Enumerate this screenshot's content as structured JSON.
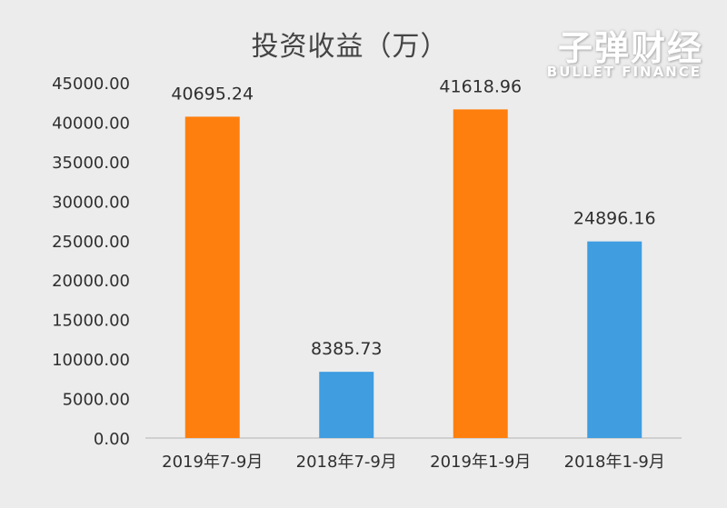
{
  "watermark": {
    "name_cn": "子弹财经",
    "name_en": "BULLET FINANCE"
  },
  "chart_data": {
    "type": "bar",
    "title": "投资收益（万）",
    "categories": [
      "2019年7-9月",
      "2018年7-9月",
      "2019年1-9月",
      "2018年1-9月"
    ],
    "values": [
      40695.24,
      8385.73,
      41618.96,
      24896.16
    ],
    "value_labels": [
      "40695.24",
      "8385.73",
      "41618.96",
      "24896.16"
    ],
    "bar_colors": [
      "#ff7f0e",
      "#3f9de0",
      "#ff7f0e",
      "#3f9de0"
    ],
    "ylim": [
      0,
      45000
    ],
    "yticks": [
      "0.00",
      "5000.00",
      "10000.00",
      "15000.00",
      "20000.00",
      "25000.00",
      "30000.00",
      "35000.00",
      "40000.00",
      "45000.00"
    ],
    "grid": false,
    "legend": "none"
  }
}
